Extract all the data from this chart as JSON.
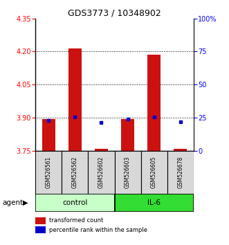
{
  "title": "GDS3773 / 10348902",
  "samples": [
    "GSM526561",
    "GSM526562",
    "GSM526602",
    "GSM526603",
    "GSM526605",
    "GSM526678"
  ],
  "groups": [
    "control",
    "control",
    "control",
    "IL-6",
    "IL-6",
    "IL-6"
  ],
  "red_values": [
    3.895,
    4.215,
    3.758,
    3.895,
    4.185,
    3.758
  ],
  "blue_values": [
    3.887,
    3.903,
    3.879,
    3.892,
    3.903,
    3.882
  ],
  "y_min": 3.75,
  "y_max": 4.35,
  "y_ticks_red": [
    3.75,
    3.9,
    4.05,
    4.2,
    4.35
  ],
  "y_ticks_blue": [
    0,
    25,
    50,
    75,
    100
  ],
  "dotted_lines": [
    3.9,
    4.05,
    4.2
  ],
  "bar_color": "#cc1111",
  "dot_color": "#0000cc",
  "bar_base": 3.75,
  "group_colors_control": "#c8ffc8",
  "group_colors_il6": "#33dd33",
  "legend_red": "transformed count",
  "legend_blue": "percentile rank within the sample",
  "control_label": "control",
  "il6_label": "IL-6",
  "agent_label": "agent",
  "cell_facecolor": "#d8d8d8",
  "title_fontsize": 9,
  "tick_fontsize": 7,
  "bar_width": 0.5
}
